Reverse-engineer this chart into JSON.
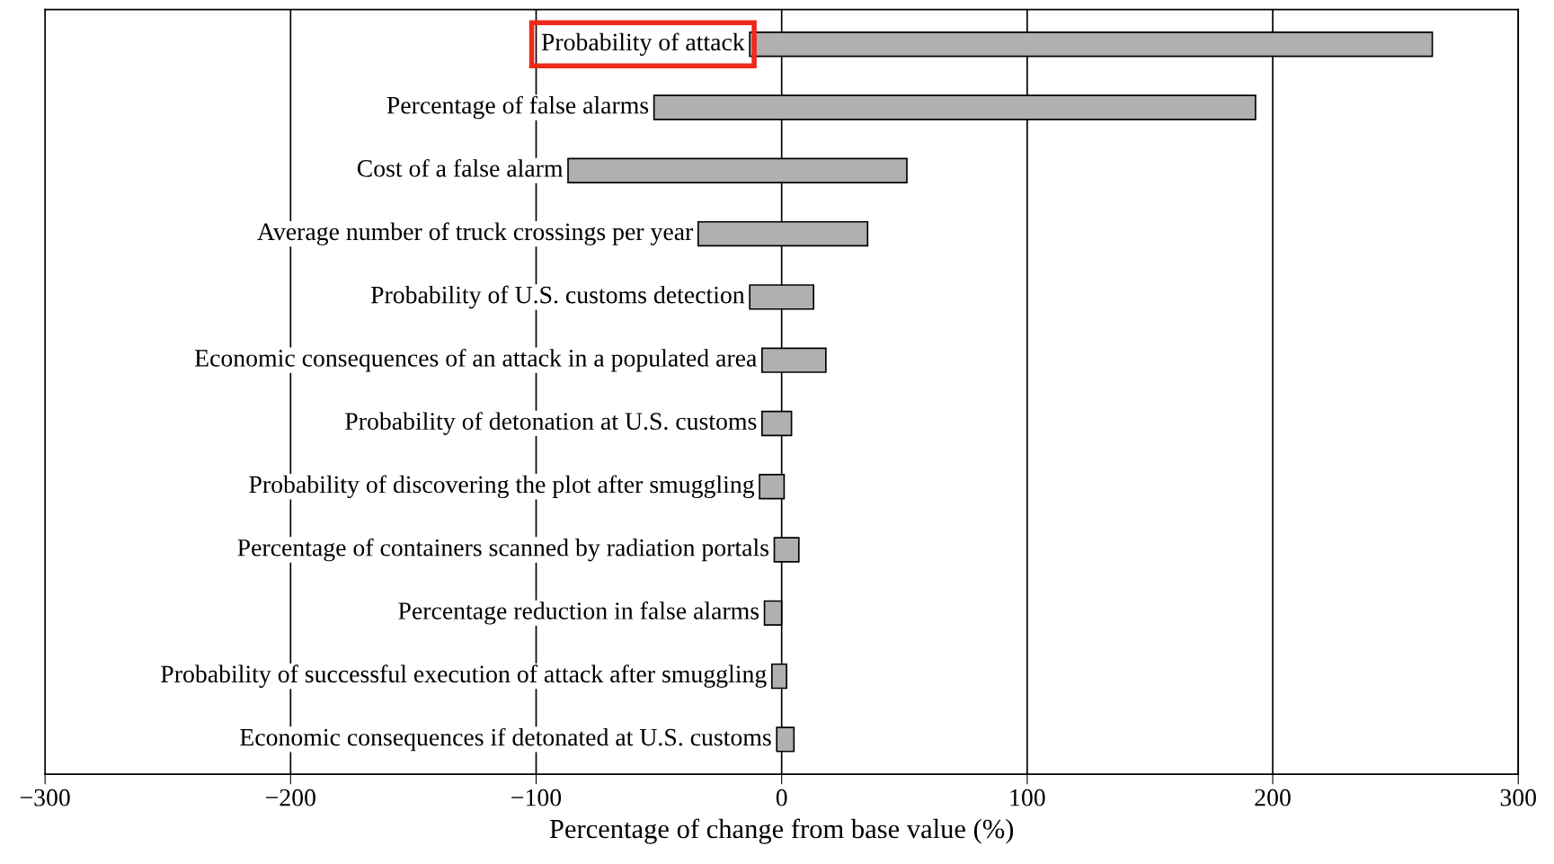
{
  "chart_data": {
    "type": "bar",
    "orientation": "horizontal",
    "xlabel": "Percentage of change from base value (%)",
    "categories": [
      "Probability of attack",
      "Percentage of false alarms",
      "Cost of a false alarm",
      "Average number of truck crossings per year",
      "Probability of U.S. customs detection",
      "Economic consequences of an attack in a populated area",
      "Probability of detonation at U.S. customs",
      "Probability of discovering the plot after smuggling",
      "Percentage of containers scanned by radiation portals",
      "Percentage reduction in false alarms",
      "Probability of successful execution of attack after smuggling",
      "Economic consequences if detonated at U.S. customs"
    ],
    "base": [
      -13,
      -52,
      -87,
      -34,
      -13,
      -8,
      -8,
      -9,
      -3,
      -7,
      -4,
      -2
    ],
    "values": [
      278,
      245,
      138,
      69,
      26,
      26,
      12,
      10,
      10,
      7,
      6,
      7
    ],
    "color": "#b0b0b0",
    "xlim": [
      -300,
      300
    ],
    "xticks": [
      {
        "value": -300,
        "label": "−300"
      },
      {
        "value": -200,
        "label": "−200"
      },
      {
        "value": -100,
        "label": "−100"
      },
      0,
      100,
      200,
      300
    ],
    "grid": "x"
  }
}
